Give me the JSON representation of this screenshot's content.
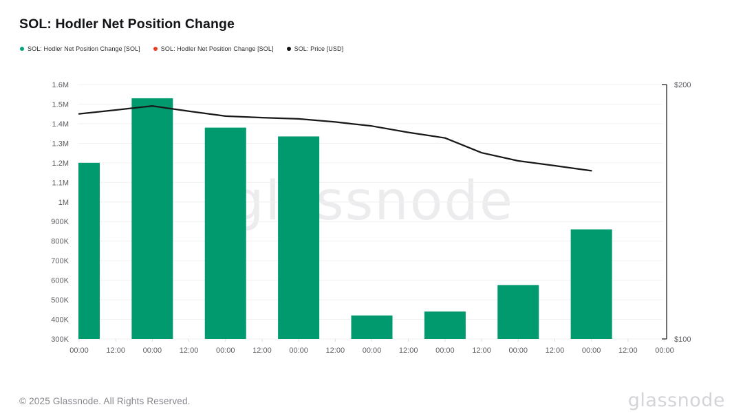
{
  "title": "SOL: Hodler Net Position Change",
  "legend": [
    {
      "label": "SOL: Hodler Net Position Change [SOL]",
      "color": "#00a57c"
    },
    {
      "label": "SOL: Hodler Net Position Change [SOL]",
      "color": "#ee3e23"
    },
    {
      "label": "SOL: Price [USD]",
      "color": "#111111"
    }
  ],
  "watermark": "glassnode",
  "footer": {
    "copyright": "© 2025 Glassnode. All Rights Reserved.",
    "logo": "glassnode"
  },
  "chart_data": {
    "type": "bar+line",
    "grid": "horizontal",
    "legend_position": "top-left",
    "x_tick_labels": [
      "00:00",
      "12:00",
      "00:00",
      "12:00",
      "00:00",
      "12:00",
      "00:00",
      "12:00",
      "00:00",
      "12:00",
      "00:00",
      "12:00",
      "00:00",
      "12:00",
      "00:00",
      "12:00",
      "00:00"
    ],
    "left_axis": {
      "min": 300000,
      "max": 1600000,
      "ticks": [
        {
          "value": 300000,
          "label": "300K"
        },
        {
          "value": 400000,
          "label": "400K"
        },
        {
          "value": 500000,
          "label": "500K"
        },
        {
          "value": 600000,
          "label": "600K"
        },
        {
          "value": 700000,
          "label": "700K"
        },
        {
          "value": 800000,
          "label": "800K"
        },
        {
          "value": 900000,
          "label": "900K"
        },
        {
          "value": 1000000,
          "label": "1M"
        },
        {
          "value": 1100000,
          "label": "1.1M"
        },
        {
          "value": 1200000,
          "label": "1.2M"
        },
        {
          "value": 1300000,
          "label": "1.3M"
        },
        {
          "value": 1400000,
          "label": "1.4M"
        },
        {
          "value": 1500000,
          "label": "1.5M"
        },
        {
          "value": 1600000,
          "label": "1.6M"
        }
      ]
    },
    "right_axis": {
      "min": 100,
      "max": 200,
      "ticks": [
        {
          "value": 200,
          "label": "$200"
        },
        {
          "value": 100,
          "label": "$100"
        }
      ]
    },
    "series": [
      {
        "name": "SOL: Hodler Net Position Change [SOL]",
        "type": "bar",
        "color": "#009a6e",
        "points": [
          {
            "tick": 0,
            "value": 1200000
          },
          {
            "tick": 2,
            "value": 1530000
          },
          {
            "tick": 4,
            "value": 1380000
          },
          {
            "tick": 6,
            "value": 1335000
          },
          {
            "tick": 8,
            "value": 420000
          },
          {
            "tick": 10,
            "value": 440000
          },
          {
            "tick": 12,
            "value": 575000
          },
          {
            "tick": 14,
            "value": 860000
          }
        ]
      },
      {
        "name": "SOL: Price [USD]",
        "type": "line",
        "color": "#17181a",
        "points": [
          {
            "tick": 0,
            "usd": 188.5
          },
          {
            "tick": 1,
            "usd": 190.0
          },
          {
            "tick": 2,
            "usd": 191.6
          },
          {
            "tick": 3,
            "usd": 189.5
          },
          {
            "tick": 4,
            "usd": 187.6
          },
          {
            "tick": 5,
            "usd": 187.0
          },
          {
            "tick": 6,
            "usd": 186.5
          },
          {
            "tick": 7,
            "usd": 185.3
          },
          {
            "tick": 8,
            "usd": 183.7
          },
          {
            "tick": 9,
            "usd": 181.2
          },
          {
            "tick": 10,
            "usd": 179.0
          },
          {
            "tick": 11,
            "usd": 173.2
          },
          {
            "tick": 12,
            "usd": 170.0
          },
          {
            "tick": 13,
            "usd": 168.1
          },
          {
            "tick": 14,
            "usd": 166.1
          }
        ]
      }
    ]
  }
}
